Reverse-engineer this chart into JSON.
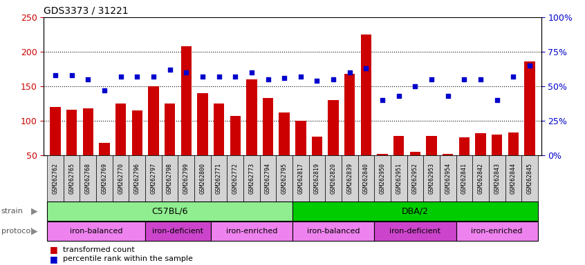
{
  "title": "GDS3373 / 31221",
  "samples": [
    "GSM262762",
    "GSM262765",
    "GSM262768",
    "GSM262769",
    "GSM262770",
    "GSM262796",
    "GSM262797",
    "GSM262798",
    "GSM262799",
    "GSM262800",
    "GSM262771",
    "GSM262772",
    "GSM262773",
    "GSM262794",
    "GSM262795",
    "GSM262817",
    "GSM262819",
    "GSM262820",
    "GSM262839",
    "GSM262840",
    "GSM262950",
    "GSM262951",
    "GSM262952",
    "GSM262953",
    "GSM262954",
    "GSM262841",
    "GSM262842",
    "GSM262843",
    "GSM262844",
    "GSM262845"
  ],
  "bar_values": [
    120,
    116,
    118,
    68,
    125,
    115,
    150,
    125,
    208,
    140,
    125,
    107,
    160,
    133,
    112,
    100,
    77,
    130,
    168,
    225,
    52,
    78,
    55,
    78,
    52,
    76,
    82,
    80,
    83,
    186
  ],
  "percentile_values": [
    58,
    58,
    55,
    47,
    57,
    57,
    57,
    62,
    60,
    57,
    57,
    57,
    60,
    55,
    56,
    57,
    54,
    55,
    60,
    63,
    40,
    43,
    50,
    55,
    43,
    55,
    55,
    40,
    57,
    65
  ],
  "bar_color": "#cc0000",
  "dot_color": "#0000cc",
  "left_ylim": [
    50,
    250
  ],
  "left_yticks": [
    50,
    100,
    150,
    200,
    250
  ],
  "right_ylim": [
    0,
    100
  ],
  "right_yticks": [
    0,
    25,
    50,
    75,
    100
  ],
  "right_yticklabels": [
    "0%",
    "25%",
    "50%",
    "75%",
    "100%"
  ],
  "grid_values": [
    100,
    150,
    200
  ],
  "strain_groups": [
    {
      "label": "C57BL/6",
      "start": 0,
      "end": 15,
      "color": "#90ee90"
    },
    {
      "label": "DBA/2",
      "start": 15,
      "end": 30,
      "color": "#00cc00"
    }
  ],
  "protocol_groups": [
    {
      "label": "iron-balanced",
      "start": 0,
      "end": 6,
      "color": "#ee82ee"
    },
    {
      "label": "iron-deficient",
      "start": 6,
      "end": 10,
      "color": "#cc44cc"
    },
    {
      "label": "iron-enriched",
      "start": 10,
      "end": 15,
      "color": "#ee82ee"
    },
    {
      "label": "iron-balanced",
      "start": 15,
      "end": 20,
      "color": "#ee82ee"
    },
    {
      "label": "iron-deficient",
      "start": 20,
      "end": 25,
      "color": "#cc44cc"
    },
    {
      "label": "iron-enriched",
      "start": 25,
      "end": 30,
      "color": "#ee82ee"
    }
  ],
  "legend_items": [
    {
      "label": "transformed count",
      "color": "#cc0000"
    },
    {
      "label": "percentile rank within the sample",
      "color": "#0000cc"
    }
  ],
  "strain_label": "strain",
  "protocol_label": "protocol",
  "bg_color": "#d3d3d3"
}
